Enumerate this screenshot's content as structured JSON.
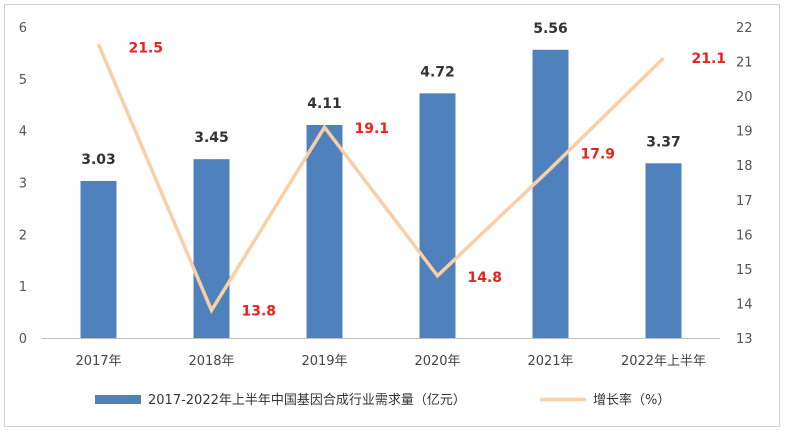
{
  "chart_data": {
    "type": "bar+line",
    "categories": [
      "2017年",
      "2018年",
      "2019年",
      "2020年",
      "2021年",
      "2022年上半年"
    ],
    "series": [
      {
        "name": "2017-2022年上半年中国基因合成行业需求量（亿元）",
        "type": "bar",
        "axis": "left",
        "values": [
          3.03,
          3.45,
          4.11,
          4.72,
          5.56,
          3.37
        ],
        "labels": [
          "3.03",
          "3.45",
          "4.11",
          "4.72",
          "5.56",
          "3.37"
        ]
      },
      {
        "name": "增长率（%）",
        "type": "line",
        "axis": "right",
        "values": [
          21.5,
          13.8,
          19.1,
          14.8,
          17.9,
          21.1
        ],
        "labels": [
          "21.5",
          "13.8",
          "19.1",
          "14.8",
          "17.9",
          "21.1"
        ]
      }
    ],
    "y_left": {
      "min": 0,
      "max": 6,
      "ticks": [
        "0",
        "1",
        "2",
        "3",
        "4",
        "5",
        "6"
      ]
    },
    "y_right": {
      "min": 13,
      "max": 22,
      "ticks": [
        "13",
        "14",
        "15",
        "16",
        "17",
        "18",
        "19",
        "20",
        "21",
        "22"
      ]
    },
    "grid": false,
    "legend": "bottom",
    "colors": {
      "bar": "#4f81bd",
      "line": "#f9cfa6",
      "rate_label": "#e8231f",
      "bar_label": "#333333"
    }
  }
}
